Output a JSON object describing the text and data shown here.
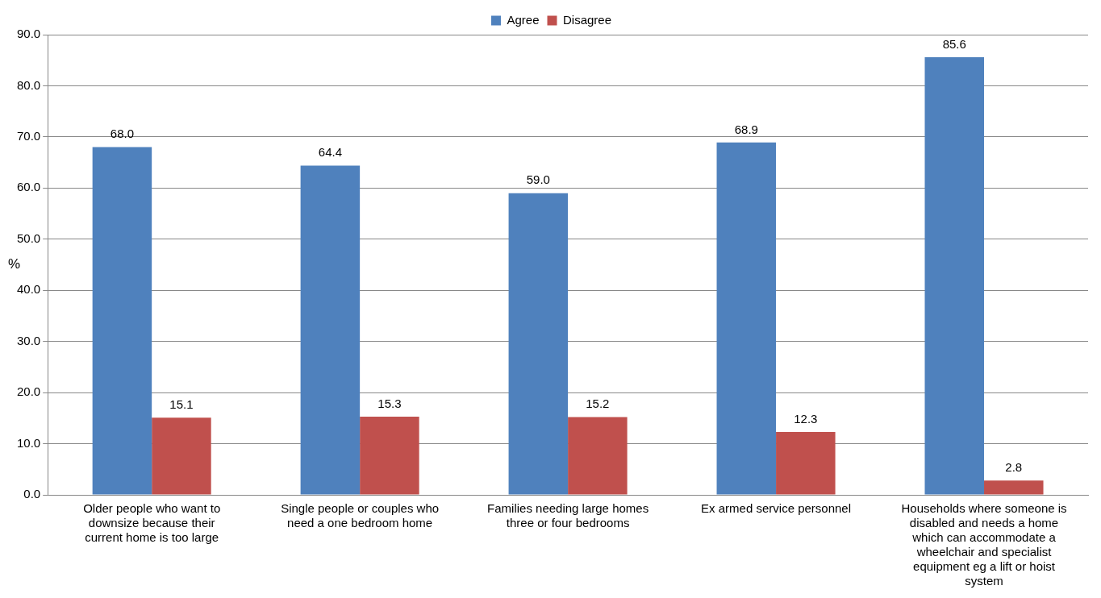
{
  "chart_data": {
    "type": "bar",
    "ylabel": "%",
    "categories": [
      "Older people who want to downsize because their current home is too large",
      "Single people or couples who need a one bedroom home",
      "Families needing large homes three or four bedrooms",
      "Ex armed service personnel",
      "Households where someone is disabled and needs a home which can accommodate a wheelchair and specialist equipment eg a lift or hoist system"
    ],
    "series": [
      {
        "name": "Agree",
        "color": "#4f81bd",
        "values": [
          68.0,
          64.4,
          59.0,
          68.9,
          85.6
        ],
        "value_labels": [
          "68.0",
          "64.4",
          "59.0",
          "68.9",
          "85.6"
        ]
      },
      {
        "name": "Disagree",
        "color": "#c0504d",
        "values": [
          15.1,
          15.3,
          15.2,
          12.3,
          2.8
        ],
        "value_labels": [
          "15.1",
          "15.3",
          "15.2",
          "12.3",
          "2.8"
        ]
      }
    ],
    "ylim": [
      0,
      90
    ],
    "yticks": [
      {
        "value": 0,
        "label": "0.0"
      },
      {
        "value": 10,
        "label": "10.0"
      },
      {
        "value": 20,
        "label": "20.0"
      },
      {
        "value": 30,
        "label": "30.0"
      },
      {
        "value": 40,
        "label": "40.0"
      },
      {
        "value": 50,
        "label": "50.0"
      },
      {
        "value": 60,
        "label": "60.0"
      },
      {
        "value": 70,
        "label": "70.0"
      },
      {
        "value": 80,
        "label": "80.0"
      },
      {
        "value": 90,
        "label": "90.0"
      }
    ],
    "grid": "y",
    "legend": "top"
  }
}
